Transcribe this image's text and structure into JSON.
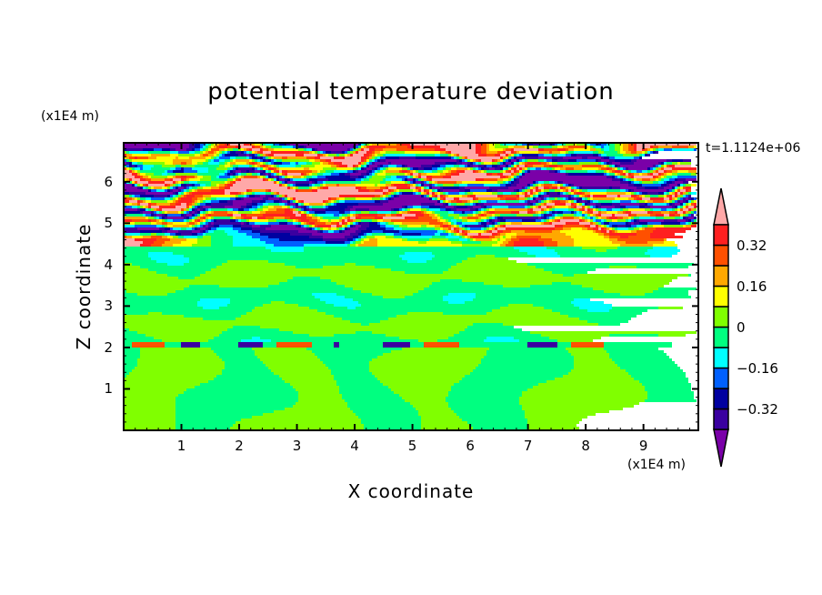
{
  "chart_data": {
    "type": "heatmap",
    "title": "potential temperature deviation",
    "xlabel": "X coordinate",
    "ylabel": "Z coordinate",
    "x_unit": "(x1E4 m)",
    "y_unit": "(x1E4 m)",
    "time_label": "t=1.1124e+06",
    "xlim": [
      0,
      9.95
    ],
    "ylim": [
      0,
      6.94
    ],
    "x_ticks": [
      "1",
      "2",
      "3",
      "4",
      "5",
      "6",
      "7",
      "8",
      "9"
    ],
    "y_ticks": [
      "1",
      "2",
      "3",
      "4",
      "5",
      "6"
    ],
    "levels": [
      -0.4,
      -0.32,
      -0.24,
      -0.16,
      -0.08,
      0,
      0.08,
      0.16,
      0.24,
      0.32,
      0.4
    ],
    "colors": [
      "#7a00a8",
      "#3a00a0",
      "#0000a0",
      "#0060ff",
      "#00ffff",
      "#00ff80",
      "#80ff00",
      "#ffff00",
      "#ffa800",
      "#ff5000",
      "#ff2020",
      "#ffa8a8"
    ],
    "colorbar_labels": [
      {
        "value": 0.32,
        "text": "0.32"
      },
      {
        "value": 0.16,
        "text": "0.16"
      },
      {
        "value": 0,
        "text": "0"
      },
      {
        "value": -0.16,
        "text": "−0.16"
      },
      {
        "value": -0.32,
        "text": "−0.32"
      }
    ],
    "upper_layer_z": [
      6.9,
      6.7,
      6.5,
      6.3,
      6.1,
      5.9,
      5.7,
      5.5,
      5.3,
      5.1,
      4.9,
      4.7,
      4.5
    ],
    "upper_layer_x": [
      0,
      1,
      2,
      3,
      4,
      5,
      6,
      7,
      8,
      9,
      10
    ],
    "upper_layer_values": [
      [
        -0.5,
        -0.5,
        0.3,
        -0.5,
        -0.5,
        0.5,
        0.5,
        -0.5,
        -0.5,
        0.5,
        0.5
      ],
      [
        0.4,
        0.1,
        0.5,
        0.5,
        0.5,
        0.2,
        0.5,
        0.5,
        0.3,
        -0.5,
        -0.5
      ],
      [
        -0.5,
        0.3,
        -0.5,
        -0.2,
        0.5,
        -0.5,
        -0.5,
        -0.5,
        -0.5,
        -0.5,
        -0.5
      ],
      [
        0.5,
        -0.4,
        0.3,
        0.5,
        -0.5,
        -0.5,
        0.5,
        0.5,
        0.3,
        0.5,
        0.5
      ],
      [
        0.5,
        0.5,
        -0.5,
        -0.5,
        -0.2,
        0.5,
        0.5,
        -0.5,
        -0.5,
        -0.2,
        0.1
      ],
      [
        -0.5,
        -0.5,
        0.5,
        0.5,
        0.4,
        -0.5,
        -0.5,
        -0.5,
        -0.5,
        -0.5,
        -0.5
      ],
      [
        -0.5,
        0.3,
        0.5,
        0.5,
        0.5,
        0.5,
        0.5,
        0.5,
        0.4,
        0.5,
        0.5
      ],
      [
        0.5,
        0.5,
        -0.5,
        -0.5,
        -0.2,
        -0.5,
        -0.5,
        -0.5,
        -0.5,
        -0.5,
        -0.5
      ],
      [
        -0.5,
        -0.5,
        -0.4,
        0.5,
        -0.5,
        -0.5,
        0.3,
        0.5,
        0.5,
        0.5,
        0.5
      ],
      [
        0.4,
        0.3,
        0.5,
        0.3,
        0.5,
        0.5,
        -0.4,
        -0.5,
        -0.2,
        -0.5,
        -0.5
      ],
      [
        -0.5,
        -0.5,
        -0.4,
        -0.5,
        -0.5,
        0.2,
        0.5,
        0.5,
        0.5,
        0.3,
        0.4
      ],
      [
        0.5,
        0.2,
        -0.2,
        -0.3,
        -0.3,
        -0.3,
        -0.1,
        0.2,
        0.1,
        0.3,
        0.5
      ],
      [
        0.5,
        0.1,
        -0.1,
        -0.2,
        0.2,
        0.1,
        0.1,
        0.4,
        0.1,
        0.1,
        0.2
      ]
    ],
    "interface_z": [
      4.45,
      2.05
    ]
  }
}
